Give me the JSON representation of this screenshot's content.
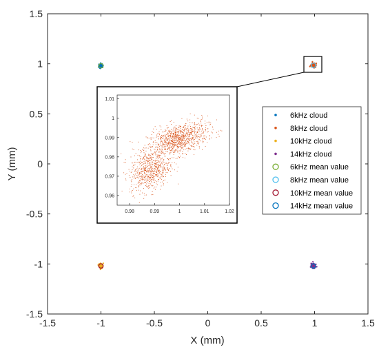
{
  "chart_data": {
    "type": "scatter",
    "title": "",
    "xlabel": "X (mm)",
    "ylabel": "Y (mm)",
    "xlim": [
      -1.5,
      1.5
    ],
    "ylim": [
      -1.5,
      1.5
    ],
    "xticks": [
      "-1.5",
      "-1",
      "-0.5",
      "0",
      "0.5",
      "1",
      "1.5"
    ],
    "yticks": [
      "1.5",
      "1",
      "0.5",
      "0",
      "-0.5",
      "-1",
      "-1.5"
    ],
    "grid": false,
    "legend_position": "right",
    "series": [
      {
        "name": "6kHz cloud",
        "kind": "cloud",
        "color": "#0072BD",
        "center": [
          -1.0,
          0.98
        ]
      },
      {
        "name": "8kHz cloud",
        "kind": "cloud",
        "color": "#D95319",
        "center": [
          0.99,
          0.985
        ]
      },
      {
        "name": "10kHz cloud",
        "kind": "cloud",
        "color": "#EDB120",
        "center": [
          -1.0,
          -1.02
        ]
      },
      {
        "name": "14kHz cloud",
        "kind": "cloud",
        "color": "#7E2F8E",
        "center": [
          0.99,
          -1.02
        ]
      },
      {
        "name": "6kHz mean value",
        "kind": "mean",
        "color": "#77AC30",
        "center": [
          -1.0,
          0.98
        ]
      },
      {
        "name": "8kHz mean value",
        "kind": "mean",
        "color": "#4DBEEE",
        "center": [
          0.99,
          0.985
        ]
      },
      {
        "name": "10kHz mean value",
        "kind": "mean",
        "color": "#A2142F",
        "center": [
          -1.0,
          -1.02
        ]
      },
      {
        "name": "14kHz mean value",
        "kind": "mean",
        "color": "#0072BD",
        "center": [
          0.99,
          -1.02
        ]
      }
    ],
    "inset": {
      "xlim": [
        0.975,
        1.02
      ],
      "ylim": [
        0.955,
        1.012
      ],
      "xticks": [
        "0.98",
        "0.99",
        "1",
        "1.01",
        "1.02"
      ],
      "yticks": [
        "1.01",
        "1",
        "0.99",
        "0.98",
        "0.97",
        "0.96"
      ],
      "cloud_color": "#D95319",
      "clusters": [
        {
          "center": [
            0.999,
            0.989
          ],
          "spread": [
            0.006,
            0.004
          ],
          "share": 0.62
        },
        {
          "center": [
            0.988,
            0.973
          ],
          "spread": [
            0.004,
            0.005
          ],
          "share": 0.38
        }
      ]
    }
  }
}
